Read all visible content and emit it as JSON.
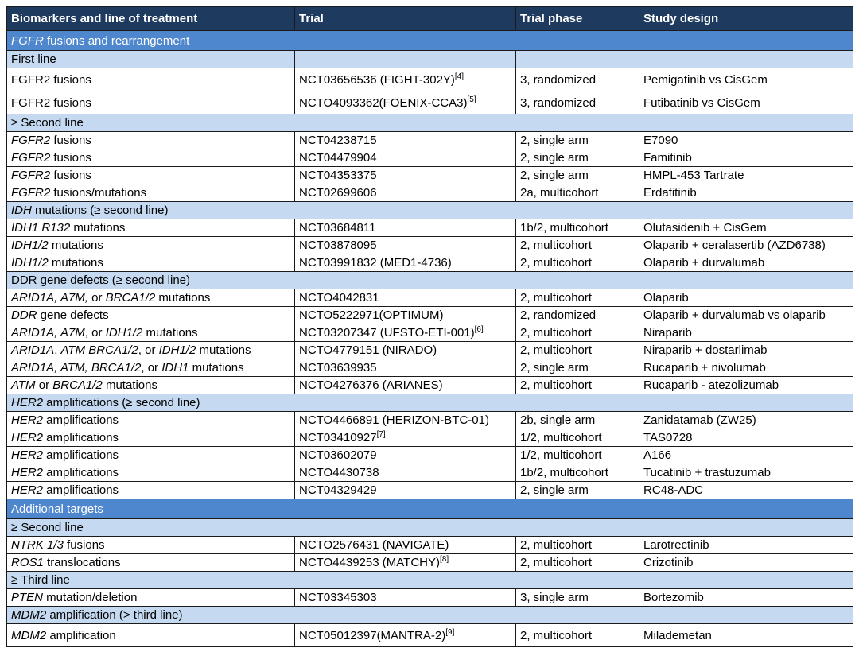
{
  "colors": {
    "header_bg": "#1E3A5E",
    "section_bg": "#4F87CE",
    "subsection_bg": "#C5D9F1",
    "border": "#1A1A1A",
    "header_text": "#FFFFFF",
    "body_text": "#000000"
  },
  "table": {
    "columns": [
      "Biomarkers and line of treatment",
      "Trial",
      "Trial phase",
      "Study design"
    ],
    "rows": [
      {
        "type": "section",
        "cell": [
          [
            "FGFR",
            "i"
          ],
          [
            " fusions and rearrangement",
            ""
          ]
        ]
      },
      {
        "type": "subsection_cells",
        "cell": [
          [
            "First line",
            ""
          ]
        ]
      },
      {
        "type": "data",
        "tall": true,
        "cells": [
          [
            [
              "FGFR2 fusions",
              ""
            ]
          ],
          [
            [
              "NCT03656536 (FIGHT-302Y)",
              ""
            ],
            [
              "[4]",
              "sup"
            ]
          ],
          [
            [
              "3, randomized",
              ""
            ]
          ],
          [
            [
              "Pemigatinib vs CisGem",
              ""
            ]
          ]
        ]
      },
      {
        "type": "data",
        "tall": true,
        "cells": [
          [
            [
              "FGFR2 fusions",
              ""
            ]
          ],
          [
            [
              "NCTO4093362(FOENIX-CCA3)",
              ""
            ],
            [
              "[5]",
              "sup"
            ]
          ],
          [
            [
              "3, randomized",
              ""
            ]
          ],
          [
            [
              "Futibatinib vs CisGem",
              ""
            ]
          ]
        ]
      },
      {
        "type": "subsection",
        "cell": [
          [
            "≥ Second line",
            ""
          ]
        ]
      },
      {
        "type": "data",
        "cells": [
          [
            [
              "FGFR2",
              "i"
            ],
            [
              " fusions",
              ""
            ]
          ],
          [
            [
              "NCT04238715",
              ""
            ]
          ],
          [
            [
              "2, single arm",
              ""
            ]
          ],
          [
            [
              "E7090",
              ""
            ]
          ]
        ]
      },
      {
        "type": "data",
        "cells": [
          [
            [
              "FGFR2",
              "i"
            ],
            [
              " fusions",
              ""
            ]
          ],
          [
            [
              "NCT04479904",
              ""
            ]
          ],
          [
            [
              "2, single arm",
              ""
            ]
          ],
          [
            [
              "Famitinib",
              ""
            ]
          ]
        ]
      },
      {
        "type": "data",
        "cells": [
          [
            [
              "FGFR2",
              "i"
            ],
            [
              " fusions",
              ""
            ]
          ],
          [
            [
              "NCT04353375",
              ""
            ]
          ],
          [
            [
              "2, single arm",
              ""
            ]
          ],
          [
            [
              "HMPL-453 Tartrate",
              ""
            ]
          ]
        ]
      },
      {
        "type": "data",
        "cells": [
          [
            [
              "FGFR2",
              "i"
            ],
            [
              " fusions/mutations",
              ""
            ]
          ],
          [
            [
              "NCT02699606",
              ""
            ]
          ],
          [
            [
              "2a, multicohort",
              ""
            ]
          ],
          [
            [
              "Erdafitinib",
              ""
            ]
          ]
        ]
      },
      {
        "type": "subsection",
        "cell": [
          [
            "IDH",
            "i"
          ],
          [
            " mutations (≥ second line)",
            ""
          ]
        ]
      },
      {
        "type": "data",
        "cells": [
          [
            [
              "IDH1 R132",
              "i"
            ],
            [
              " mutations",
              ""
            ]
          ],
          [
            [
              "NCT03684811",
              ""
            ]
          ],
          [
            [
              "1b/2, multicohort",
              ""
            ]
          ],
          [
            [
              "Olutasidenib + CisGem",
              ""
            ]
          ]
        ]
      },
      {
        "type": "data",
        "cells": [
          [
            [
              "IDH1/2",
              "i"
            ],
            [
              " mutations",
              ""
            ]
          ],
          [
            [
              "NCT03878095",
              ""
            ]
          ],
          [
            [
              "2, multicohort",
              ""
            ]
          ],
          [
            [
              "Olaparib + ceralasertib (AZD6738)",
              ""
            ]
          ]
        ]
      },
      {
        "type": "data",
        "cells": [
          [
            [
              "IDH1/2",
              "i"
            ],
            [
              " mutations",
              ""
            ]
          ],
          [
            [
              "NCT03991832 (MED1-4736)",
              ""
            ]
          ],
          [
            [
              "2, multicohort",
              ""
            ]
          ],
          [
            [
              "Olaparib + durvalumab",
              ""
            ]
          ]
        ]
      },
      {
        "type": "subsection",
        "cell": [
          [
            "DDR gene defects (≥ second line)",
            ""
          ]
        ]
      },
      {
        "type": "data",
        "cells": [
          [
            [
              "ARID1A, A7M,",
              "i"
            ],
            [
              " or ",
              ""
            ],
            [
              "BRCA1/2",
              "i"
            ],
            [
              " mutations",
              ""
            ]
          ],
          [
            [
              "NCTO4042831",
              ""
            ]
          ],
          [
            [
              "2, multicohort",
              ""
            ]
          ],
          [
            [
              "Olaparib",
              ""
            ]
          ]
        ]
      },
      {
        "type": "data",
        "cells": [
          [
            [
              "DDR",
              "i"
            ],
            [
              " gene defects",
              ""
            ]
          ],
          [
            [
              "NCTO5222971(OPTIMUM)",
              ""
            ]
          ],
          [
            [
              "2, randomized",
              ""
            ]
          ],
          [
            [
              "Olaparib + durvalumab vs olaparib",
              ""
            ]
          ]
        ]
      },
      {
        "type": "data",
        "cells": [
          [
            [
              "ARID1A, A7M",
              "i"
            ],
            [
              ", or ",
              ""
            ],
            [
              "IDH1/2",
              "i"
            ],
            [
              " mutations",
              ""
            ]
          ],
          [
            [
              "NCT03207347 (UFSTO-ETI-001)",
              ""
            ],
            [
              "[6]",
              "sup"
            ]
          ],
          [
            [
              "2, multicohort",
              ""
            ]
          ],
          [
            [
              "Niraparib",
              ""
            ]
          ]
        ]
      },
      {
        "type": "data",
        "cells": [
          [
            [
              "ARID1A",
              "i"
            ],
            [
              ", ",
              ""
            ],
            [
              "ATM BRCA1/2",
              "i"
            ],
            [
              ", or ",
              ""
            ],
            [
              "IDH1/2",
              "i"
            ],
            [
              " mutations",
              ""
            ]
          ],
          [
            [
              "NCTO4779151 (NIRADO)",
              ""
            ]
          ],
          [
            [
              "2, multicohort",
              ""
            ]
          ],
          [
            [
              "Niraparib + dostarlimab",
              ""
            ]
          ]
        ]
      },
      {
        "type": "data",
        "cells": [
          [
            [
              "ARID1A, ATM, BRCA1/2",
              "i"
            ],
            [
              ", or ",
              ""
            ],
            [
              "IDH1",
              "i"
            ],
            [
              " mutations",
              ""
            ]
          ],
          [
            [
              "NCT03639935",
              ""
            ]
          ],
          [
            [
              "2, single arm",
              ""
            ]
          ],
          [
            [
              "Rucaparib + nivolumab",
              ""
            ]
          ]
        ]
      },
      {
        "type": "data",
        "cells": [
          [
            [
              "ATM",
              "i"
            ],
            [
              " or ",
              ""
            ],
            [
              "BRCA1/2",
              "i"
            ],
            [
              " mutations",
              ""
            ]
          ],
          [
            [
              "NCTO4276376 (ARIANES)",
              ""
            ]
          ],
          [
            [
              "2, multicohort",
              ""
            ]
          ],
          [
            [
              "Rucaparib - atezolizumab",
              ""
            ]
          ]
        ]
      },
      {
        "type": "subsection",
        "cell": [
          [
            "HER2",
            "i"
          ],
          [
            " amplifications (≥ second line)",
            ""
          ]
        ]
      },
      {
        "type": "data",
        "cells": [
          [
            [
              "HER2",
              "i"
            ],
            [
              " amplifications",
              ""
            ]
          ],
          [
            [
              "NCTO4466891 (HERIZON-BTC-01)",
              ""
            ]
          ],
          [
            [
              "2b, single arm",
              ""
            ]
          ],
          [
            [
              "Zanidatamab (ZW25)",
              ""
            ]
          ]
        ]
      },
      {
        "type": "data",
        "cells": [
          [
            [
              "HER2",
              "i"
            ],
            [
              " amplifications",
              ""
            ]
          ],
          [
            [
              "NCT03410927",
              ""
            ],
            [
              "[7]",
              "sup"
            ]
          ],
          [
            [
              "1/2, multicohort",
              ""
            ]
          ],
          [
            [
              "TAS0728",
              ""
            ]
          ]
        ]
      },
      {
        "type": "data",
        "cells": [
          [
            [
              "HER2",
              "i"
            ],
            [
              " amplifications",
              ""
            ]
          ],
          [
            [
              "NCT03602079",
              ""
            ]
          ],
          [
            [
              "1/2, multicohort",
              ""
            ]
          ],
          [
            [
              "A166",
              ""
            ]
          ]
        ]
      },
      {
        "type": "data",
        "cells": [
          [
            [
              "HER2",
              "i"
            ],
            [
              " amplifications",
              ""
            ]
          ],
          [
            [
              "NCTO4430738",
              ""
            ]
          ],
          [
            [
              "1b/2, multicohort",
              ""
            ]
          ],
          [
            [
              "Tucatinib + trastuzumab",
              ""
            ]
          ]
        ]
      },
      {
        "type": "data",
        "cells": [
          [
            [
              "HER2",
              "i"
            ],
            [
              " amplifications",
              ""
            ]
          ],
          [
            [
              "NCT04329429",
              ""
            ]
          ],
          [
            [
              "2, single arm",
              ""
            ]
          ],
          [
            [
              "RC48-ADC",
              ""
            ]
          ]
        ]
      },
      {
        "type": "section",
        "cell": [
          [
            "Additional targets",
            ""
          ]
        ]
      },
      {
        "type": "subsection",
        "cell": [
          [
            "≥ Second line",
            ""
          ]
        ]
      },
      {
        "type": "data",
        "cells": [
          [
            [
              "NTRK 1/3",
              "i"
            ],
            [
              " fusions",
              ""
            ]
          ],
          [
            [
              "NCTO2576431 (NAVIGATE)",
              ""
            ]
          ],
          [
            [
              "2, multicohort",
              ""
            ]
          ],
          [
            [
              "Larotrectinib",
              ""
            ]
          ]
        ]
      },
      {
        "type": "data",
        "cells": [
          [
            [
              "ROS1",
              "i"
            ],
            [
              " translocations",
              ""
            ]
          ],
          [
            [
              "NCTO4439253 (MATCHY)",
              ""
            ],
            [
              "[8]",
              "sup"
            ]
          ],
          [
            [
              "2, multicohort",
              ""
            ]
          ],
          [
            [
              "Crizotinib",
              ""
            ]
          ]
        ]
      },
      {
        "type": "subsection",
        "cell": [
          [
            "≥ Third line",
            ""
          ]
        ]
      },
      {
        "type": "data",
        "cells": [
          [
            [
              "PTEN",
              "i"
            ],
            [
              " mutation/deletion",
              ""
            ]
          ],
          [
            [
              "NCT03345303",
              ""
            ]
          ],
          [
            [
              "3, single arm",
              ""
            ]
          ],
          [
            [
              "Bortezomib",
              ""
            ]
          ]
        ]
      },
      {
        "type": "subsection",
        "cell": [
          [
            "MDM2",
            "i"
          ],
          [
            " amplification (> third line)",
            ""
          ]
        ]
      },
      {
        "type": "data",
        "tall": true,
        "cells": [
          [
            [
              "MDM2",
              "i"
            ],
            [
              " amplification",
              ""
            ]
          ],
          [
            [
              "NCT05012397(MANTRA-2)",
              ""
            ],
            [
              "[9]",
              "sup"
            ]
          ],
          [
            [
              "2, multicohort",
              ""
            ]
          ],
          [
            [
              "Milademetan",
              ""
            ]
          ]
        ]
      }
    ]
  }
}
